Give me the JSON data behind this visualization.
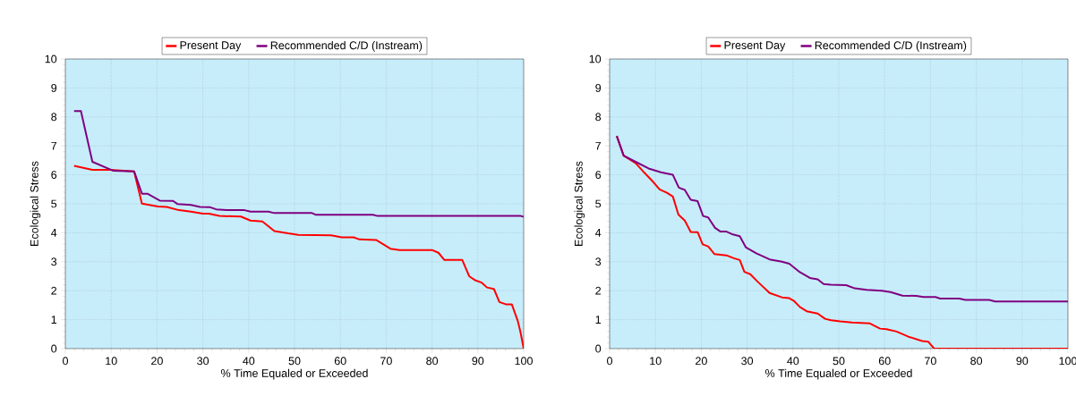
{
  "chart_data": [
    {
      "type": "line",
      "xlabel": "% Time Equaled or Exceeded",
      "ylabel": "Ecological Stress",
      "xlim": [
        0,
        100
      ],
      "ylim": [
        0,
        10
      ],
      "xticks": [
        0,
        10,
        20,
        30,
        40,
        50,
        60,
        70,
        80,
        90,
        100
      ],
      "yticks": [
        0,
        1,
        2,
        3,
        4,
        5,
        6,
        7,
        8,
        9,
        10
      ],
      "grid": true,
      "legend": "top",
      "series": [
        {
          "name": "Present Day",
          "color": "#ff0000",
          "x": [
            1.9,
            5.9,
            9.8,
            15,
            16.7,
            20.2,
            22.1,
            24.8,
            27.4,
            30.0,
            31.3,
            33.6,
            38.3,
            40.4,
            43,
            45.6,
            48.6,
            50.8,
            58,
            60.3,
            62.9,
            64.2,
            67.8,
            69.4,
            70.9,
            72.9,
            80.1,
            81.4,
            82.7,
            86.6,
            88.1,
            89.3,
            90.8,
            92,
            93.5,
            94.7,
            96.1,
            97.4,
            98.7,
            99.3,
            100
          ],
          "values": [
            6.31,
            6.17,
            6.17,
            6.12,
            5.01,
            4.91,
            4.89,
            4.78,
            4.73,
            4.66,
            4.66,
            4.58,
            4.56,
            4.42,
            4.39,
            4.06,
            3.98,
            3.93,
            3.91,
            3.84,
            3.84,
            3.77,
            3.75,
            3.6,
            3.45,
            3.4,
            3.4,
            3.31,
            3.06,
            3.06,
            2.5,
            2.37,
            2.28,
            2.11,
            2.06,
            1.61,
            1.53,
            1.53,
            0.96,
            0.57,
            0
          ]
        },
        {
          "name": "Recommended C/D (Instream)",
          "color": "#800080",
          "x": [
            1.9,
            3.4,
            5.9,
            10.5,
            15,
            16.7,
            17.9,
            20.6,
            23.5,
            24.5,
            27.4,
            29.4,
            31.6,
            32.9,
            35.2,
            39.1,
            40.4,
            44.3,
            45.6,
            53.8,
            54.7,
            67.1,
            68.1,
            99.4,
            100
          ],
          "values": [
            8.2,
            8.2,
            6.45,
            6.14,
            6.12,
            5.35,
            5.35,
            5.11,
            5.1,
            4.99,
            4.96,
            4.89,
            4.88,
            4.81,
            4.78,
            4.78,
            4.73,
            4.73,
            4.68,
            4.68,
            4.62,
            4.62,
            4.58,
            4.58,
            4.55
          ]
        }
      ]
    },
    {
      "type": "line",
      "xlabel": "% Time Equaled or Exceeded",
      "ylabel": "Ecological Stress",
      "xlim": [
        0,
        100
      ],
      "ylim": [
        0,
        10
      ],
      "xticks": [
        0,
        10,
        20,
        30,
        40,
        50,
        60,
        70,
        80,
        90,
        100
      ],
      "yticks": [
        0,
        1,
        2,
        3,
        4,
        5,
        6,
        7,
        8,
        9,
        10
      ],
      "grid": true,
      "legend": "top",
      "series": [
        {
          "name": "Present Day",
          "color": "#ff0000",
          "x": [
            1.56,
            3.06,
            4.4,
            5.7,
            7.3,
            9.2,
            10.9,
            12.5,
            13.8,
            15.0,
            16.4,
            17.7,
            19.2,
            20.3,
            21.5,
            22.9,
            25.5,
            27.1,
            28.4,
            29.4,
            30.7,
            32.3,
            34.9,
            37.6,
            39.2,
            40.2,
            41.5,
            43,
            45.4,
            47,
            48.3,
            50.3,
            52.9,
            56.8,
            59.0,
            60.4,
            62.6,
            65.2,
            68.2,
            69.5,
            70.8,
            100
          ],
          "values": [
            7.34,
            6.66,
            6.53,
            6.4,
            6.12,
            5.81,
            5.5,
            5.38,
            5.25,
            4.63,
            4.42,
            4.03,
            4.02,
            3.6,
            3.53,
            3.26,
            3.22,
            3.12,
            3.06,
            2.65,
            2.57,
            2.31,
            1.92,
            1.77,
            1.74,
            1.65,
            1.44,
            1.29,
            1.21,
            1.03,
            0.98,
            0.94,
            0.9,
            0.87,
            0.69,
            0.67,
            0.59,
            0.41,
            0.26,
            0.24,
            0,
            0
          ]
        },
        {
          "name": "Recommended C/D (Instream)",
          "color": "#800080",
          "x": [
            1.56,
            3.06,
            5.66,
            8.5,
            11.2,
            13.8,
            15.1,
            16.4,
            17.7,
            19.2,
            20.4,
            21.5,
            23.0,
            24.2,
            25.5,
            26.9,
            28.4,
            29.7,
            32,
            34.9,
            37.6,
            39.2,
            41.5,
            43.7,
            45.4,
            46.7,
            48.3,
            51.6,
            53.5,
            56.1,
            59.4,
            61.3,
            63.9,
            66.9,
            68.5,
            71.1,
            72.1,
            76.3,
            77.6,
            82.8,
            84.1,
            100
          ],
          "values": [
            7.34,
            6.66,
            6.45,
            6.22,
            6.09,
            6.0,
            5.56,
            5.48,
            5.14,
            5.09,
            4.58,
            4.53,
            4.17,
            4.04,
            4.04,
            3.94,
            3.88,
            3.5,
            3.29,
            3.08,
            3.0,
            2.93,
            2.64,
            2.44,
            2.39,
            2.23,
            2.21,
            2.19,
            2.08,
            2.03,
            2.0,
            1.95,
            1.83,
            1.82,
            1.78,
            1.78,
            1.73,
            1.73,
            1.68,
            1.68,
            1.63,
            1.63
          ]
        }
      ]
    }
  ]
}
